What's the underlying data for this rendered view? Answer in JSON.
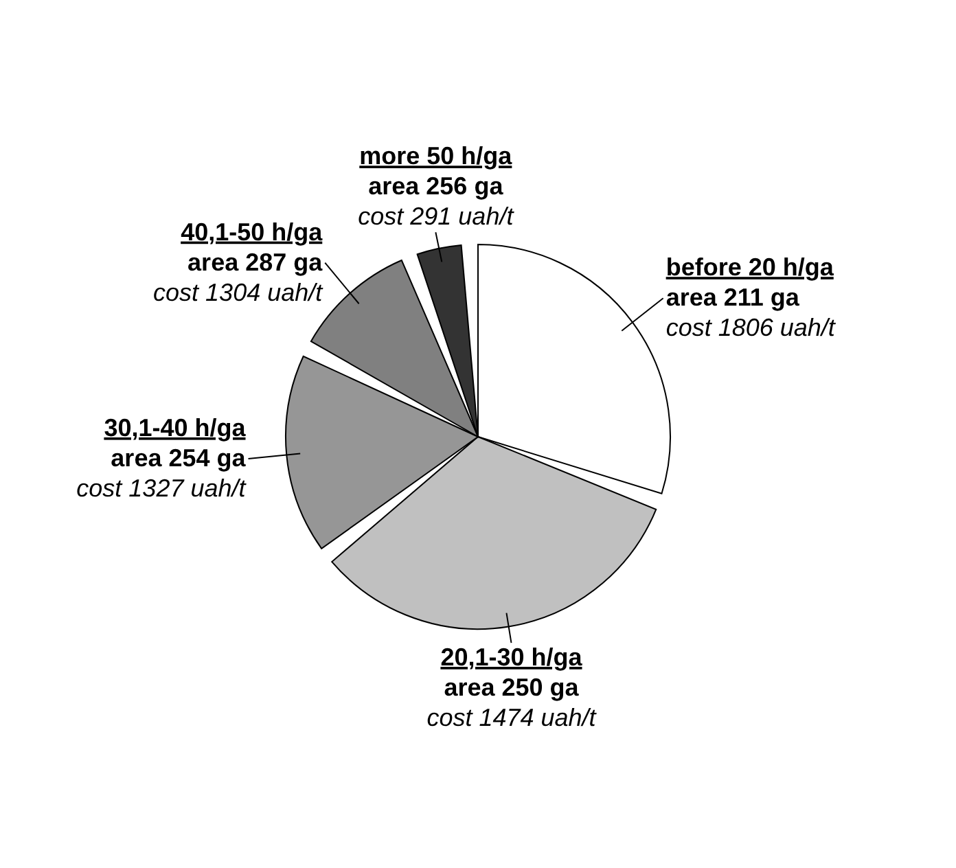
{
  "chart_data": {
    "type": "pie",
    "categories": [
      "before 20 h/ga",
      "20,1-30 h/ga",
      "30,1-40 h/ga",
      "40,1-50 h/ga",
      "more 50 h/ga"
    ],
    "values": [
      32,
      35,
      18,
      11,
      4
    ],
    "colors": [
      "#ffffff",
      "#c0c0c0",
      "#969696",
      "#808080",
      "#333333"
    ],
    "annotations": [
      "area 211 ga",
      "cost 1806 uah/t",
      "area 250 ga",
      "cost 1474 uah/t",
      "area 254 ga",
      "cost 1327 uah/t",
      "area 287 ga",
      "cost 1304 uah/t",
      "area 256 ga",
      "cost 291 uah/t"
    ],
    "legend": false
  }
}
